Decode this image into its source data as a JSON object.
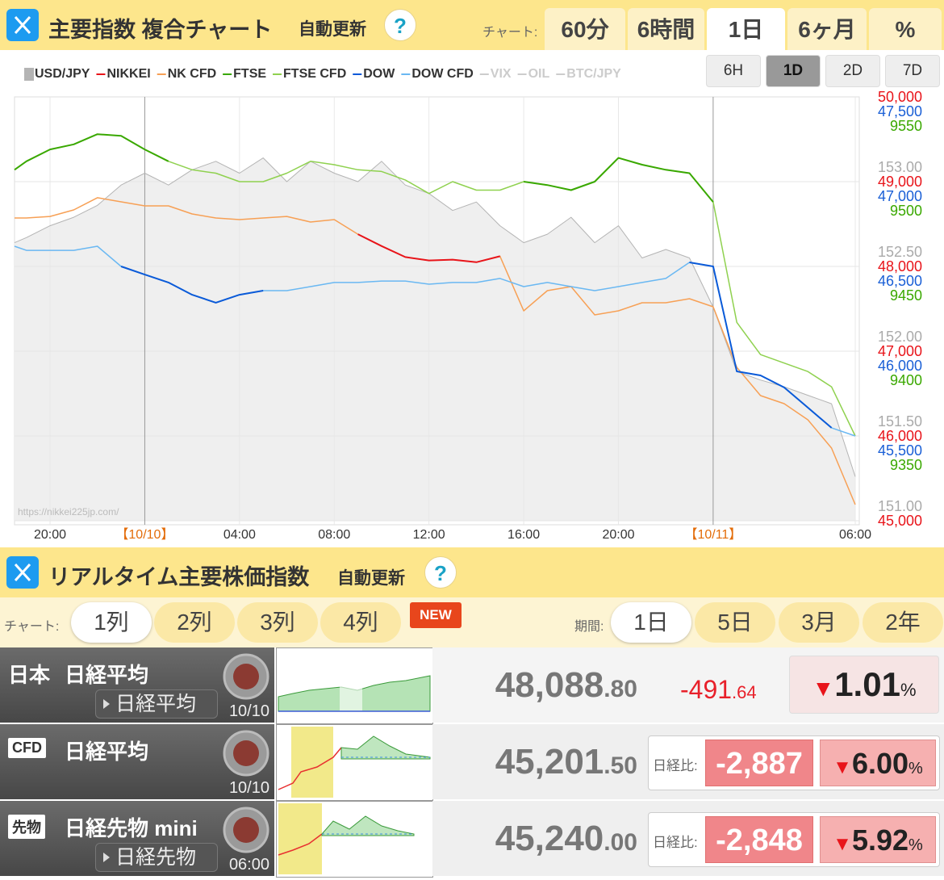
{
  "header": {
    "title": "主要指数 複合チャート",
    "auto": "自動更新",
    "help": "?",
    "chart_label": "チャート:",
    "tabs": [
      "60分",
      "6時間",
      "1日",
      "6ヶ月",
      "%"
    ],
    "active_tab": 2,
    "ranges": [
      "6H",
      "1D",
      "2D",
      "7D"
    ],
    "active_range": 1
  },
  "chart_data": {
    "type": "line",
    "watermark": "https://nikkei225jp.com/",
    "x": [
      18.5,
      19,
      20,
      21,
      22,
      23,
      24,
      25,
      26,
      27,
      28,
      29,
      30,
      31,
      32,
      33,
      34,
      35,
      36,
      37,
      38,
      39,
      40,
      41,
      42,
      43,
      44,
      45,
      46,
      47,
      48,
      49,
      50,
      51,
      52,
      53,
      54
    ],
    "xlim": [
      18.5,
      54
    ],
    "xticks": [
      {
        "value": 20,
        "label": "20:00"
      },
      {
        "value": 24,
        "label": "【10/10】",
        "color": "#e36c09"
      },
      {
        "value": 28,
        "label": "04:00"
      },
      {
        "value": 32,
        "label": "08:00"
      },
      {
        "value": 36,
        "label": "12:00"
      },
      {
        "value": 40,
        "label": "16:00"
      },
      {
        "value": 44,
        "label": "20:00"
      },
      {
        "value": 48,
        "label": "【10/11】",
        "color": "#e36c09"
      },
      {
        "value": 54,
        "label": "06:00"
      }
    ],
    "axes": [
      {
        "color": "#aaaaaa",
        "ylim": [
          151,
          153.5
        ],
        "yticks": [
          {
            "value": 153,
            "label": "153.00"
          },
          {
            "value": 152.5,
            "label": "152.50"
          },
          {
            "value": 152,
            "label": "152.00"
          },
          {
            "value": 151.5,
            "label": "151.50"
          },
          {
            "value": 151,
            "label": "151.00"
          }
        ]
      },
      {
        "color": "#e8141a",
        "ylim": [
          45000,
          50000
        ],
        "yticks": [
          {
            "value": 50000,
            "label": "50,000"
          },
          {
            "value": 49000,
            "label": "49,000"
          },
          {
            "value": 48000,
            "label": "48,000"
          },
          {
            "value": 47000,
            "label": "47,000"
          },
          {
            "value": 46000,
            "label": "46,000"
          },
          {
            "value": 45000,
            "label": "45,000"
          }
        ]
      },
      {
        "color": "#1a5fd6",
        "ylim": [
          45000,
          47500
        ],
        "yticks": [
          {
            "value": 47500,
            "label": "47,500"
          },
          {
            "value": 47000,
            "label": "47,000"
          },
          {
            "value": 46500,
            "label": "46,500"
          },
          {
            "value": 46000,
            "label": "46,000"
          },
          {
            "value": 45500,
            "label": "45,500"
          }
        ]
      },
      {
        "color": "#3aa800",
        "ylim": [
          9300,
          9550
        ],
        "yticks": [
          9550,
          9500,
          9450,
          9400,
          9350
        ]
      }
    ],
    "series": [
      {
        "name": "USD/JPY",
        "color": "#b4b4b4",
        "width": 1,
        "area": true,
        "fill": "#efefef",
        "axis": 0,
        "values": [
          152.64,
          152.67,
          152.74,
          152.79,
          152.86,
          152.98,
          153.05,
          152.98,
          153.07,
          153.12,
          153.05,
          153.14,
          153.0,
          153.12,
          153.05,
          153.0,
          153.12,
          152.98,
          152.93,
          152.83,
          152.88,
          152.74,
          152.64,
          152.69,
          152.79,
          152.64,
          152.74,
          152.55,
          152.6,
          152.55,
          152.26,
          151.88,
          151.83,
          151.79,
          151.74,
          151.69,
          151.26
        ]
      },
      {
        "name": "NIKKEI",
        "color": "#e8141a",
        "width": 2,
        "axis": 1,
        "values": [
          null,
          null,
          null,
          null,
          null,
          null,
          null,
          null,
          null,
          null,
          null,
          null,
          null,
          null,
          null,
          48380,
          48240,
          48110,
          48070,
          48080,
          48050,
          48120,
          null,
          null,
          null,
          null,
          null,
          null,
          null,
          null,
          null,
          null,
          null,
          null,
          null,
          null,
          null
        ]
      },
      {
        "name": "NK CFD",
        "color": "#f7a055",
        "width": 1.5,
        "axis": 1,
        "values": [
          48571,
          48571,
          48590,
          48667,
          48810,
          48762,
          48714,
          48714,
          48619,
          48571,
          48552,
          48571,
          48590,
          48524,
          48552,
          48380,
          48240,
          48110,
          48070,
          48080,
          48050,
          48120,
          47476,
          47714,
          47762,
          47429,
          47476,
          47571,
          47571,
          47619,
          47524,
          46810,
          46476,
          46381,
          46190,
          45857,
          45190
        ]
      },
      {
        "name": "FTSE",
        "color": "#39a800",
        "width": 2,
        "axis": 3,
        "values": [
          9507,
          9512,
          9519,
          9522,
          9528,
          9527,
          9519,
          9512,
          null,
          null,
          null,
          null,
          null,
          null,
          null,
          null,
          null,
          null,
          null,
          null,
          null,
          null,
          9500,
          9498,
          9495,
          9500,
          9514,
          9510,
          9507,
          9505,
          9488,
          null,
          null,
          null,
          null,
          null,
          null
        ]
      },
      {
        "name": "FTSE CFD",
        "color": "#8fd14f",
        "width": 1.5,
        "axis": 3,
        "values": [
          null,
          null,
          null,
          null,
          null,
          null,
          null,
          9512,
          9507,
          9505,
          9500,
          9500,
          9505,
          9512,
          9510,
          9507,
          9506,
          9501,
          9493,
          9500,
          9495,
          9495,
          9500,
          9498,
          9495,
          9500,
          9514,
          9510,
          9507,
          9505,
          9488,
          9417,
          9398,
          9393,
          9388,
          9379,
          9350
        ]
      },
      {
        "name": "DOW",
        "color": "#0a5ad8",
        "width": 2,
        "axis": 2,
        "values": [
          null,
          null,
          null,
          null,
          null,
          46500,
          46452,
          46405,
          46333,
          46286,
          46333,
          46357,
          null,
          null,
          null,
          null,
          null,
          null,
          null,
          null,
          null,
          null,
          null,
          null,
          null,
          null,
          null,
          null,
          null,
          46524,
          46500,
          45881,
          45857,
          45786,
          45667,
          45548,
          null
        ]
      },
      {
        "name": "DOW CFD",
        "color": "#6ab8f2",
        "width": 1.5,
        "axis": 2,
        "values": [
          46619,
          46595,
          46595,
          46595,
          46619,
          46500,
          46452,
          46405,
          46333,
          46286,
          46333,
          46357,
          46357,
          46381,
          46405,
          46405,
          46414,
          46414,
          46395,
          46405,
          46405,
          46429,
          46381,
          46405,
          46381,
          46357,
          46381,
          46405,
          46429,
          46524,
          46500,
          45881,
          45857,
          45786,
          45667,
          45548,
          45500
        ]
      }
    ],
    "inactive_legend": [
      "VIX",
      "OIL",
      "BTC/JPY"
    ],
    "inactive_color": "#cccccc"
  },
  "section": {
    "title": "リアルタイム主要株価指数",
    "auto": "自動更新",
    "help": "?",
    "chart_label": "チャート:",
    "layouts": [
      "1列",
      "2列",
      "3列",
      "4列"
    ],
    "active_layout": 0,
    "new_badge": "NEW",
    "period_label": "期間:",
    "periods": [
      "1日",
      "5日",
      "3月",
      "2年"
    ],
    "active_period": 0
  },
  "rows": [
    {
      "badge": "日本",
      "boxed": false,
      "name": "日経平均",
      "button": "日経平均",
      "date": "10/10",
      "price": "48,088.80",
      "change": "-491.64",
      "pct": "▼1.01%"
    },
    {
      "badge": "CFD",
      "boxed": true,
      "name": "日経平均",
      "date": "10/10",
      "price": "45,201.50",
      "compare_label": "日経比:",
      "diff": "-2,887",
      "pct": "▼6.00%"
    },
    {
      "badge": "先物",
      "boxed": true,
      "name": "日経先物 mini",
      "button": "日経先物",
      "date": "06:00",
      "price": "45,240.00",
      "compare_label": "日経比:",
      "diff": "-2,848",
      "pct": "▼5.92%"
    }
  ]
}
